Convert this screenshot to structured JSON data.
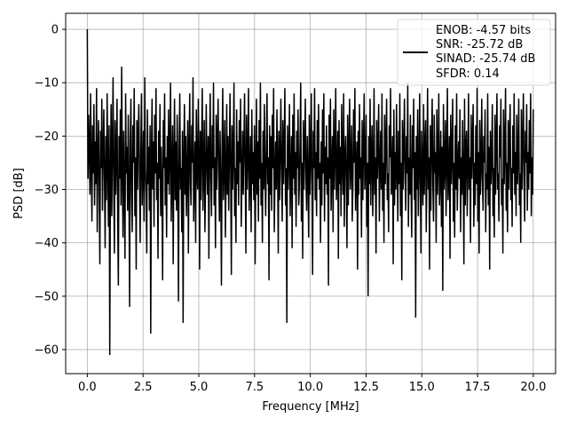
{
  "chart_data": {
    "type": "line",
    "title": "",
    "xlabel": "Frequency [MHz]",
    "ylabel": "PSD [dB]",
    "xlim": [
      -0.97,
      21.0
    ],
    "ylim": [
      -64.5,
      3.0
    ],
    "x_ticks": [
      0,
      2.5,
      5,
      7.5,
      10,
      12.5,
      15,
      17.5,
      20
    ],
    "x_tick_labels": [
      "0.0",
      "2.5",
      "5.0",
      "7.5",
      "10.0",
      "12.5",
      "15.0",
      "17.5",
      "20.0"
    ],
    "y_ticks": [
      0,
      -10,
      -20,
      -30,
      -40,
      -50,
      -60
    ],
    "y_tick_labels": [
      "0",
      "−10",
      "−20",
      "−30",
      "−40",
      "−50",
      "−60"
    ],
    "grid": true,
    "legend": {
      "placement": "top-right",
      "entries": [
        "ENOB: -4.57 bits",
        "SNR: -25.72 dB",
        "SINAD: -25.74 dB",
        "SFDR: 0.14"
      ]
    },
    "series": [
      {
        "color": "#000000",
        "x_start": 0,
        "x_end": 20,
        "values": [
          0,
          -28,
          -16,
          -22,
          -31,
          -12,
          -25,
          -36,
          -18,
          -27,
          -14,
          -33,
          -21,
          -29,
          -11,
          -38,
          -24,
          -17,
          -30,
          -44,
          -19,
          -26,
          -13,
          -34,
          -23,
          -15,
          -28,
          -41,
          -20,
          -32,
          -12,
          -25,
          -37,
          -18,
          -61,
          -27,
          -14,
          -35,
          -22,
          -9,
          -29,
          -42,
          -17,
          -31,
          -24,
          -13,
          -36,
          -48,
          -20,
          -28,
          -15,
          -33,
          -7,
          -26,
          -39,
          -19,
          -30,
          -43,
          -12,
          -27,
          -22,
          -34,
          -16,
          -29,
          -52,
          -21,
          -13,
          -31,
          -38,
          -18,
          -25,
          -11,
          -35,
          -24,
          -45,
          -17,
          -30,
          -20,
          -14,
          -28,
          -40,
          -23,
          -12,
          -33,
          -27,
          -19,
          -36,
          -9,
          -26,
          -31,
          -42,
          -15,
          -29,
          -22,
          -34,
          -18,
          -57,
          -24,
          -13,
          -30,
          -21,
          -37,
          -16,
          -27,
          -11,
          -32,
          -25,
          -43,
          -19,
          -28,
          -14,
          -35,
          -22,
          -30,
          -47,
          -17,
          -26,
          -12,
          -33,
          -24,
          -39,
          -20,
          -29,
          -15,
          -31,
          -23,
          -10,
          -36,
          -27,
          -18,
          -44,
          -25,
          -13,
          -32,
          -21,
          -34,
          -16,
          -28,
          -51,
          -22,
          -12,
          -30,
          -26,
          -38,
          -19,
          -55,
          -24,
          -14,
          -31,
          -20,
          -35,
          -27,
          -17,
          -42,
          -23,
          -12,
          -29,
          -33,
          -18,
          -25,
          -9,
          -36,
          -28,
          -21,
          -40,
          -15,
          -27,
          -30,
          -13,
          -24,
          -45,
          -19,
          -32,
          -22,
          -11,
          -34,
          -26,
          -17,
          -38,
          -29,
          -14,
          -25,
          -31,
          -20,
          -43,
          -23,
          -12,
          -28,
          -35,
          -18,
          -26,
          -10,
          -33,
          -24,
          -41,
          -16,
          -30,
          -21,
          -13,
          -27,
          -36,
          -19,
          -29,
          -48,
          -22,
          -11,
          -32,
          -25,
          -17,
          -39,
          -28,
          -14,
          -31,
          -20,
          -34,
          -24,
          -12,
          -27,
          -46,
          -18,
          -30,
          -23,
          -10,
          -35,
          -26,
          -40,
          -15,
          -29,
          -21,
          -33,
          -17,
          -25,
          -13,
          -37,
          -28,
          -19,
          -31,
          -22,
          -12,
          -26,
          -42,
          -16,
          -30,
          -24,
          -11,
          -34,
          -27,
          -20,
          -38,
          -15,
          -29,
          -23,
          -32,
          -18,
          -44,
          -26,
          -13,
          -31,
          -21,
          -36,
          -17,
          -28,
          -10,
          -33,
          -25,
          -40,
          -19,
          -30,
          -14,
          -27,
          -35,
          -22,
          -12,
          -29,
          -24,
          -47,
          -18,
          -31,
          -20,
          -34,
          -16,
          -26,
          -11,
          -38,
          -28,
          -21,
          -30,
          -15,
          -25,
          -42,
          -19,
          -32,
          -23,
          -13,
          -27,
          -36,
          -17,
          -29,
          -22,
          -11,
          -33,
          -26,
          -55,
          -18,
          -30,
          -24,
          -14,
          -35,
          -27,
          -20,
          -41,
          -16,
          -28,
          -12,
          -31,
          -23,
          -37,
          -19,
          -26,
          -15,
          -33,
          -29,
          -21,
          -10,
          -36,
          -25,
          -43,
          -17,
          -30,
          -22,
          -13,
          -28,
          -34,
          -20,
          -27,
          -39,
          -16,
          -31,
          -24,
          -12,
          -29,
          -46,
          -19,
          -26,
          -11,
          -32,
          -23,
          -35,
          -17,
          -28,
          -14,
          -30,
          -25,
          -40,
          -21,
          -33,
          -15,
          -27,
          -12,
          -36,
          -22,
          -29,
          -18,
          -31,
          -24,
          -48,
          -16,
          -28,
          -13,
          -34,
          -26,
          -20,
          -38,
          -15,
          -30,
          -23,
          -11,
          -32,
          -27,
          -19,
          -43,
          -17,
          -29,
          -22,
          -35,
          -14,
          -25,
          -31,
          -12,
          -37,
          -24,
          -20,
          -28,
          -41,
          -16,
          -33,
          -23,
          -13,
          -30,
          -26,
          -18,
          -36,
          -29,
          -15,
          -25,
          -11,
          -34,
          -27,
          -21,
          -45,
          -19,
          -31,
          -14,
          -28,
          -24,
          -39,
          -17,
          -32,
          -22,
          -12,
          -30,
          -26,
          -16,
          -37,
          -25,
          -50,
          -20,
          -29,
          -13,
          -33,
          -23,
          -18,
          -35,
          -27,
          -11,
          -31,
          -24,
          -42,
          -17,
          -28,
          -22,
          -14,
          -36,
          -26,
          -19,
          -30,
          -12,
          -34,
          -25,
          -40,
          -16,
          -29,
          -21,
          -13,
          -32,
          -27,
          -38,
          -18,
          -24,
          -11,
          -31,
          -28,
          -20,
          -44,
          -15,
          -33,
          -23,
          -30,
          -14,
          -26,
          -36,
          -19,
          -29,
          -12,
          -35,
          -25,
          -47,
          -17,
          -30,
          -22,
          -13,
          -28,
          -34,
          -20,
          -27,
          -10,
          -37,
          -24,
          -31,
          -16,
          -29,
          -39,
          -18,
          -26,
          -13,
          -32,
          -23,
          -54,
          -20,
          -30,
          -15,
          -35,
          -27,
          -12,
          -28,
          -42,
          -19,
          -25,
          -33,
          -14,
          -31,
          -22,
          -17,
          -38,
          -26,
          -11,
          -30,
          -24,
          -45,
          -18,
          -34,
          -21,
          -13,
          -29,
          -36,
          -16,
          -27,
          -23,
          -40,
          -15,
          -31,
          -25,
          -12,
          -33,
          -28,
          -19,
          -37,
          -22,
          -49,
          -14,
          -30,
          -26,
          -17,
          -35,
          -24,
          -11,
          -32,
          -27,
          -20,
          -43,
          -16,
          -29,
          -23,
          -13,
          -36,
          -25,
          -39,
          -18,
          -30,
          -12,
          -34,
          -26,
          -21,
          -28,
          -15,
          -38,
          -24,
          -31,
          -17,
          -27,
          -44,
          -13,
          -33,
          -22,
          -19,
          -35,
          -26,
          -12,
          -30,
          -24,
          -40,
          -16,
          -28,
          -21,
          -14,
          -37,
          -25,
          -33,
          -18,
          -29,
          -11,
          -36,
          -23,
          -42,
          -17,
          -31,
          -26,
          -13,
          -28,
          -34,
          -20,
          -25,
          -15,
          -38,
          -27,
          -30,
          -12,
          -33,
          -22,
          -45,
          -19,
          -29,
          -24,
          -14,
          -35,
          -26,
          -39,
          -16,
          -31,
          -21,
          -12,
          -30,
          -27,
          -36,
          -18,
          -24,
          -13,
          -33,
          -28,
          -42,
          -15,
          -29,
          -22,
          -11,
          -34,
          -25,
          -38,
          -17,
          -30,
          -20,
          -14,
          -32,
          -26,
          -37,
          -18,
          -27,
          -12,
          -31,
          -23,
          -35,
          -16,
          -29,
          -24,
          -13,
          -33,
          -27,
          -40,
          -15,
          -30,
          -21,
          -12,
          -28,
          -36,
          -19,
          -25,
          -14,
          -34,
          -23,
          -30,
          -17,
          -27,
          -12,
          -35,
          -24,
          -31,
          -15
        ]
      }
    ]
  }
}
